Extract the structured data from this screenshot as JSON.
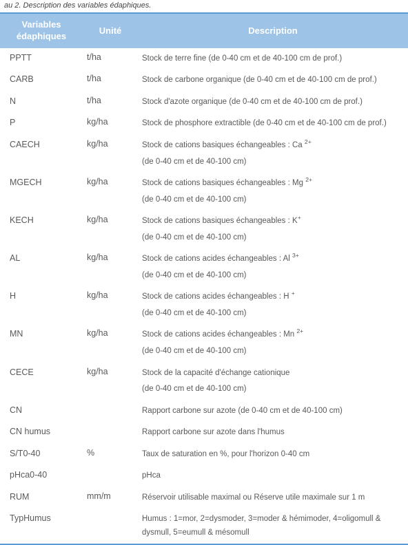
{
  "caption": "au 2. Description des variables édaphiques.",
  "headers": {
    "variables": "Variables édaphiques",
    "unit": "Unité",
    "description": "Description"
  },
  "colors": {
    "header_bg": "#9dc3e6",
    "header_text": "#ffffff",
    "border": "#5b9bd5",
    "body_text": "#595959"
  },
  "rows": [
    {
      "var": "PPTT",
      "unit": "t/ha",
      "desc": [
        "Stock de terre fine (de 0-40 cm et de 40-100 cm de prof.)"
      ]
    },
    {
      "var": "CARB",
      "unit": "t/ha",
      "desc": [
        "Stock de carbone organique (de 0-40 cm et de 40-100 cm de prof.)"
      ]
    },
    {
      "var": "N",
      "unit": "t/ha",
      "desc": [
        "Stock d'azote organique (de 0-40 cm et de 40-100 cm de prof.)"
      ]
    },
    {
      "var": "P",
      "unit": "kg/ha",
      "desc": [
        "Stock de phosphore extractible (de 0-40 cm et de 40-100 cm de prof.)"
      ]
    },
    {
      "var": "CAECH",
      "unit": "kg/ha",
      "desc": [
        "Stock de cations basiques échangeables : Ca <sup>2+</sup>",
        "(de 0-40 cm et de 40-100 cm)"
      ]
    },
    {
      "var": "MGECH",
      "unit": "kg/ha",
      "desc": [
        "Stock de cations basiques échangeables : Mg <sup>2+</sup>",
        "(de 0-40 cm et de 40-100 cm)"
      ]
    },
    {
      "var": "KECH",
      "unit": "kg/ha",
      "desc": [
        "Stock de cations basiques échangeables : K<sup>+</sup>",
        "(de 0-40 cm et de 40-100 cm)"
      ]
    },
    {
      "var": "AL",
      "unit": "kg/ha",
      "desc": [
        "Stock de cations acides échangeables : Al <sup>3+</sup>",
        "(de 0-40 cm et de 40-100 cm)"
      ]
    },
    {
      "var": "H",
      "unit": "kg/ha",
      "desc": [
        "Stock de cations acides échangeables : H <sup>+</sup>",
        "(de 0-40 cm et de 40-100 cm)"
      ]
    },
    {
      "var": "MN",
      "unit": "kg/ha",
      "desc": [
        "Stock de cations acides échangeables : Mn <sup>2+</sup>",
        "(de 0-40 cm et de 40-100 cm)"
      ]
    },
    {
      "var": "CECE",
      "unit": "kg/ha",
      "desc": [
        "Stock de la capacité d'échange cationique",
        "(de 0-40 cm et de 40-100 cm)"
      ]
    },
    {
      "var": "CN",
      "unit": "",
      "desc": [
        "Rapport carbone sur azote (de 0-40 cm et de 40-100 cm)"
      ]
    },
    {
      "var": "CN humus",
      "unit": "",
      "desc": [
        "Rapport carbone sur azote dans l'humus"
      ]
    },
    {
      "var": "S/T0-40",
      "unit": "%",
      "desc": [
        "Taux de saturation en %, pour l'horizon 0-40 cm"
      ]
    },
    {
      "var": "pHca0-40",
      "unit": "",
      "desc": [
        "pHca"
      ]
    },
    {
      "var": "RUM",
      "unit": "mm/m",
      "desc": [
        "Réservoir utilisable maximal ou Réserve utile maximale sur 1 m"
      ]
    },
    {
      "var": "TypHumus",
      "unit": "",
      "desc": [
        "Humus : 1=mor, 2=dysmoder, 3=moder & hémimoder, 4=oligomull & dysmull, 5=eumull & mésomull"
      ]
    }
  ]
}
